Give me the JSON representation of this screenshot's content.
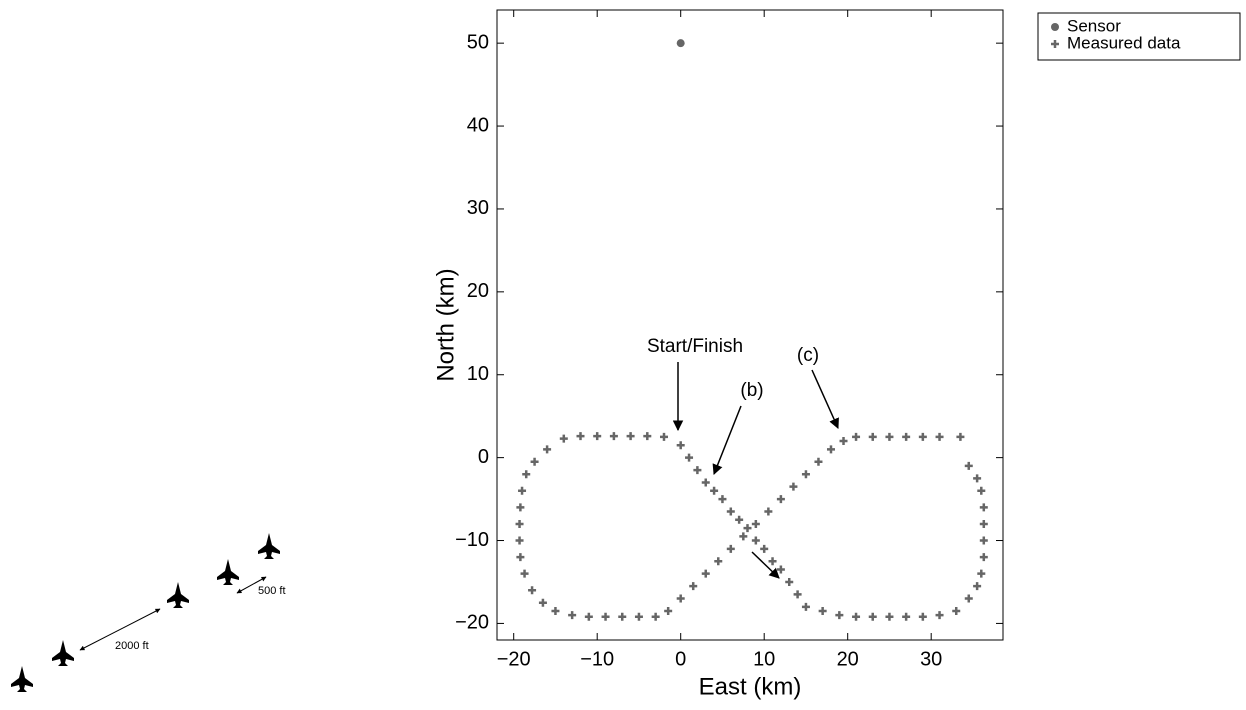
{
  "diagram": {
    "labels": [
      "2000 ft",
      "500 ft"
    ]
  },
  "chart_data": {
    "type": "scatter",
    "xlabel": "East (km)",
    "ylabel": "North (km)",
    "xlim": [
      -22,
      38.6
    ],
    "ylim": [
      -22,
      54
    ],
    "xticks": [
      {
        "value": -20,
        "label": "−20"
      },
      {
        "value": -10,
        "label": "−10"
      },
      0,
      10,
      20,
      30
    ],
    "yticks": [
      {
        "value": -20,
        "label": "−20"
      },
      {
        "value": -10,
        "label": "−10"
      },
      0,
      10,
      20,
      30,
      40,
      50
    ],
    "legend": "upper right outside",
    "annotations": [
      "Start/Finish",
      "(b)",
      "(c)"
    ],
    "series": [
      {
        "name": "Sensor",
        "color": "#666666",
        "marker": "dot",
        "x": [
          0
        ],
        "values": [
          50
        ]
      },
      {
        "name": "Measured data",
        "color": "#666666",
        "marker": "plus",
        "x": [
          0,
          1,
          2,
          3,
          4,
          5,
          6,
          7,
          8,
          9,
          10,
          11,
          12,
          13,
          14,
          15,
          17,
          19,
          21,
          23,
          25,
          27,
          29,
          31,
          33,
          34.5,
          35.5,
          36,
          36.3,
          36.3,
          36.3,
          36.3,
          36,
          35.5,
          34.5,
          33.5,
          31,
          29,
          27,
          25,
          23,
          21,
          19.5,
          18,
          16.5,
          15,
          13.5,
          12,
          10.5,
          9,
          7.5,
          6,
          4.5,
          3,
          1.5,
          0,
          -1.5,
          -3,
          -5,
          -7,
          -9,
          -11,
          -13,
          -15,
          -16.5,
          -17.8,
          -18.7,
          -19.2,
          -19.3,
          -19.3,
          -19.2,
          -19,
          -18.5,
          -17.5,
          -16,
          -14,
          -12,
          -10,
          -8,
          -6,
          -4,
          -2
        ],
        "values": [
          1.5,
          0,
          -1.5,
          -3,
          -4,
          -5,
          -6.5,
          -7.5,
          -8.5,
          -10,
          -11,
          -12.5,
          -13.5,
          -15,
          -16.5,
          -18,
          -18.5,
          -19,
          -19.2,
          -19.2,
          -19.2,
          -19.2,
          -19.2,
          -19,
          -18.5,
          -17,
          -15.5,
          -14,
          -12,
          -10,
          -8,
          -6,
          -4,
          -2.5,
          -1,
          2.5,
          2.5,
          2.5,
          2.5,
          2.5,
          2.5,
          2.5,
          2,
          1,
          -0.5,
          -2,
          -3.5,
          -5,
          -6.5,
          -8,
          -9.5,
          -11,
          -12.5,
          -14,
          -15.5,
          -17,
          -18.5,
          -19.2,
          -19.2,
          -19.2,
          -19.2,
          -19.2,
          -19,
          -18.5,
          -17.5,
          -16,
          -14,
          -12,
          -10,
          -8,
          -6,
          -4,
          -2,
          -0.5,
          1,
          2.3,
          2.6,
          2.6,
          2.6,
          2.6,
          2.6,
          2.5
        ]
      }
    ]
  }
}
